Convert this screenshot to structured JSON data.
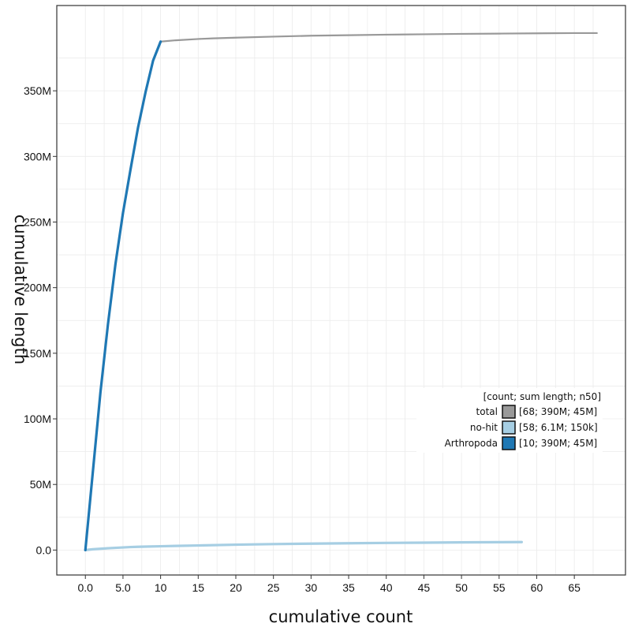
{
  "chart_data": {
    "type": "line",
    "xlabel": "cumulative count",
    "ylabel": "cumulative length",
    "xlim": [
      -3.8,
      71.8
    ],
    "ylim": [
      -19000000,
      415000000
    ],
    "x_ticks": [
      0,
      5,
      10,
      15,
      20,
      25,
      30,
      35,
      40,
      45,
      50,
      55,
      60,
      65
    ],
    "x_tick_labels": [
      "0.0",
      "5.0",
      "10",
      "15",
      "20",
      "25",
      "30",
      "35",
      "40",
      "45",
      "50",
      "55",
      "60",
      "65"
    ],
    "y_ticks": [
      0,
      50000000,
      100000000,
      150000000,
      200000000,
      250000000,
      300000000,
      350000000
    ],
    "y_tick_labels": [
      "0.0",
      "50M",
      "100M",
      "150M",
      "200M",
      "250M",
      "300M",
      "350M"
    ],
    "grid": true,
    "legend": {
      "title": "[count; sum length; n50]",
      "placement": "right",
      "entries": [
        {
          "name": "total",
          "stats": "[68; 390M; 45M]",
          "color": "#999999"
        },
        {
          "name": "no-hit",
          "stats": "[58; 6.1M; 150k]",
          "color": "#a6cee3"
        },
        {
          "name": "Arthropoda",
          "stats": "[10; 390M; 45M]",
          "color": "#1f78b4"
        }
      ]
    },
    "series": [
      {
        "name": "total",
        "color": "#999999",
        "x": [
          10,
          12,
          15,
          17,
          20,
          25,
          30,
          35,
          40,
          45,
          50,
          55,
          60,
          65,
          68
        ],
        "y": [
          387500000,
          388500000,
          389500000,
          390000000,
          390500000,
          391300000,
          392000000,
          392400000,
          392800000,
          393100000,
          393400000,
          393600000,
          393800000,
          394000000,
          394000000
        ]
      },
      {
        "name": "no-hit",
        "color": "#a6cee3",
        "x": [
          0,
          1,
          2,
          3,
          4,
          5,
          6,
          7,
          8,
          10,
          12,
          15,
          20,
          25,
          30,
          35,
          40,
          45,
          50,
          55,
          58
        ],
        "y": [
          0,
          600000,
          1000000,
          1400000,
          1700000,
          2000000,
          2300000,
          2500000,
          2650000,
          2900000,
          3150000,
          3500000,
          4100000,
          4550000,
          4900000,
          5200000,
          5450000,
          5650000,
          5850000,
          6000000,
          6100000
        ]
      },
      {
        "name": "Arthropoda",
        "color": "#1f78b4",
        "x": [
          0,
          1,
          2,
          3,
          4,
          5,
          6,
          7,
          8,
          9,
          10
        ],
        "y": [
          0,
          60000000,
          120000000,
          172000000,
          218000000,
          257000000,
          290000000,
          322000000,
          349000000,
          373000000,
          387500000
        ]
      }
    ]
  }
}
